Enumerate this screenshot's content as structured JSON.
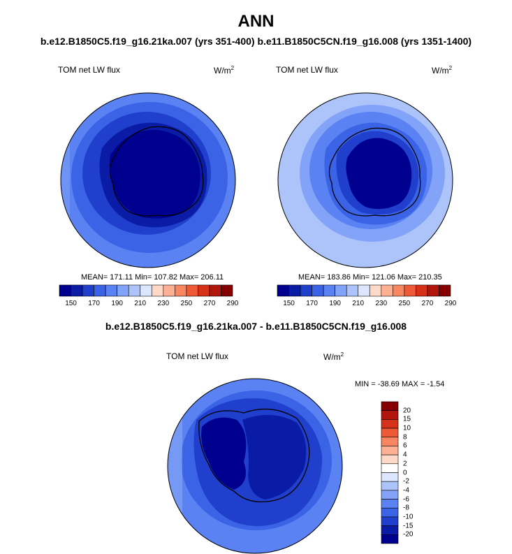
{
  "figure": {
    "title": "ANN",
    "subtitle": "b.e12.B1850C5.f19_g16.21ka.007 (yrs 351-400) b.e11.B1850C5CN.f19_g16.008 (yrs 1351-1400)",
    "diff_title": "b.e12.B1850C5.f19_g16.21ka.007 - b.e11.B1850C5CN.f19_g16.008"
  },
  "panels": [
    {
      "variable": "TOM net LW flux",
      "units": "W/m",
      "units_exp": "2",
      "stats": "MEAN= 171.11  Min= 107.82  Max= 206.11",
      "colorbar_labels": [
        "150",
        "170",
        "190",
        "210",
        "230",
        "250",
        "270",
        "290"
      ]
    },
    {
      "variable": "TOM net LW flux",
      "units": "W/m",
      "units_exp": "2",
      "stats": "MEAN= 183.86  Min= 121.06  Max= 210.35",
      "colorbar_labels": [
        "150",
        "170",
        "190",
        "210",
        "230",
        "250",
        "270",
        "290"
      ]
    }
  ],
  "diff_panel": {
    "variable": "TOM net LW flux",
    "units": "W/m",
    "units_exp": "2",
    "stats": "MIN = -38.69 MAX =  -1.54",
    "colorbar_labels": [
      "20",
      "15",
      "10",
      "8",
      "6",
      "4",
      "2",
      "0",
      "-2",
      "-4",
      "-6",
      "-8",
      "-10",
      "-15",
      "-20"
    ]
  },
  "colors": {
    "abs_scale": [
      "#00008f",
      "#0a1ca6",
      "#1f3fcc",
      "#3a63e6",
      "#5a82f2",
      "#82a3f7",
      "#adc4fb",
      "#dce7ff",
      "#ffd9c8",
      "#fdb094",
      "#f88660",
      "#ef5a36",
      "#d6321a",
      "#b0160c",
      "#850000"
    ],
    "diff_scale": [
      "#850000",
      "#b0160c",
      "#d6321a",
      "#ef5a36",
      "#f88660",
      "#fdb094",
      "#ffd9c8",
      "#ffffff",
      "#dce7ff",
      "#adc4fb",
      "#82a3f7",
      "#5a82f2",
      "#3a63e6",
      "#1f3fcc",
      "#0a1ca6",
      "#00008f"
    ]
  }
}
